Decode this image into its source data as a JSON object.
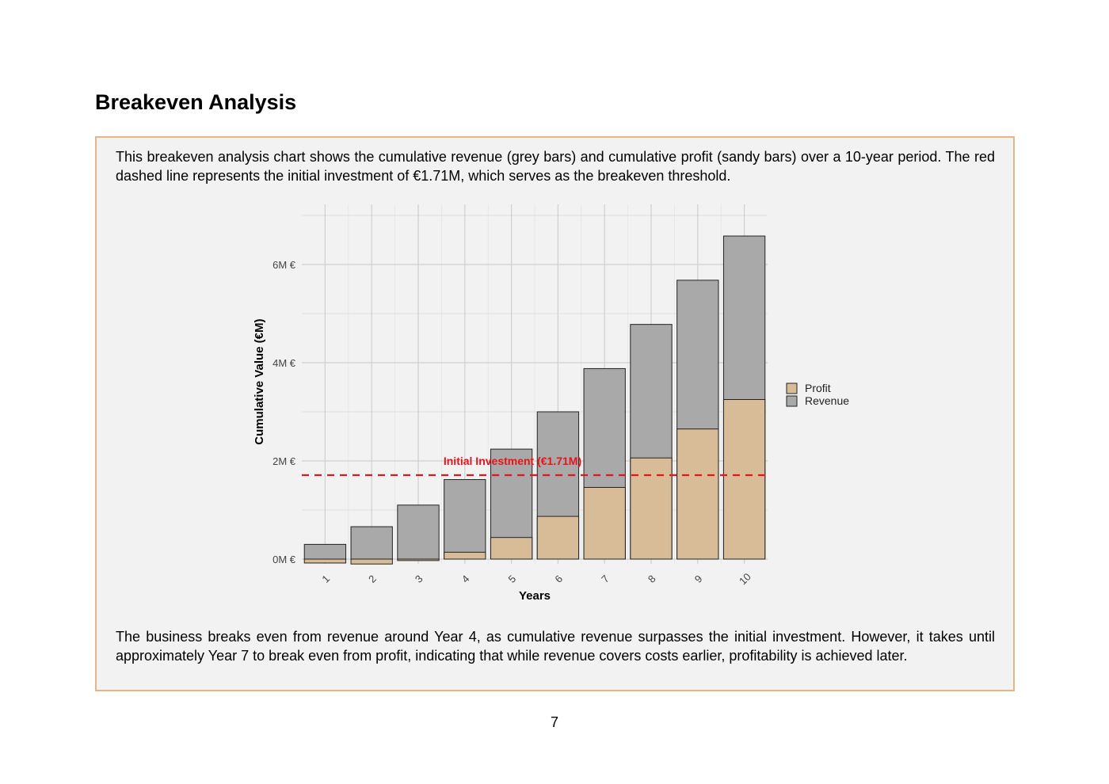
{
  "document": {
    "heading": "Breakeven Analysis",
    "intro": "This breakeven analysis chart shows the cumulative revenue (grey bars) and cumulative profit (sandy bars) over a 10-year period. The red dashed line represents the initial investment of €1.71M, which serves as the breakeven threshold.",
    "conclusion": "The business breaks even from revenue around Year 4, as cumulative revenue surpasses the initial investment.  However, it takes until approximately Year 7 to break even from profit, indicating that while revenue covers costs earlier, profitability is achieved later.",
    "page_number": "7"
  },
  "colors": {
    "box_border": "#e1b886",
    "box_background": "#f2f2f2",
    "profit": "#d8bc98",
    "revenue": "#a9a9a9",
    "threshold": "#e8141c",
    "grid": "#cfcfcf"
  },
  "chart_data": {
    "type": "bar",
    "xlabel": "Years",
    "ylabel": "Cumulative Value (€M)",
    "categories": [
      "1",
      "2",
      "3",
      "4",
      "5",
      "6",
      "7",
      "8",
      "9",
      "10"
    ],
    "series": [
      {
        "name": "Profit",
        "values": [
          -0.08,
          -0.1,
          -0.03,
          0.14,
          0.44,
          0.87,
          1.46,
          2.06,
          2.65,
          3.25
        ]
      },
      {
        "name": "Revenue",
        "values": [
          0.3,
          0.66,
          1.1,
          1.62,
          2.24,
          3.0,
          3.88,
          4.78,
          5.68,
          6.58
        ]
      }
    ],
    "ylim": [
      -0.1,
      7.0
    ],
    "y_ticks": [
      0,
      2,
      4,
      6
    ],
    "y_tick_labels": [
      "0M €",
      "2M €",
      "4M €",
      "6M €"
    ],
    "threshold": {
      "value": 1.71,
      "label": "Initial Investment (€1.71M)"
    },
    "legend": {
      "entries": [
        "Profit",
        "Revenue"
      ],
      "position": "right"
    },
    "grid": true
  }
}
